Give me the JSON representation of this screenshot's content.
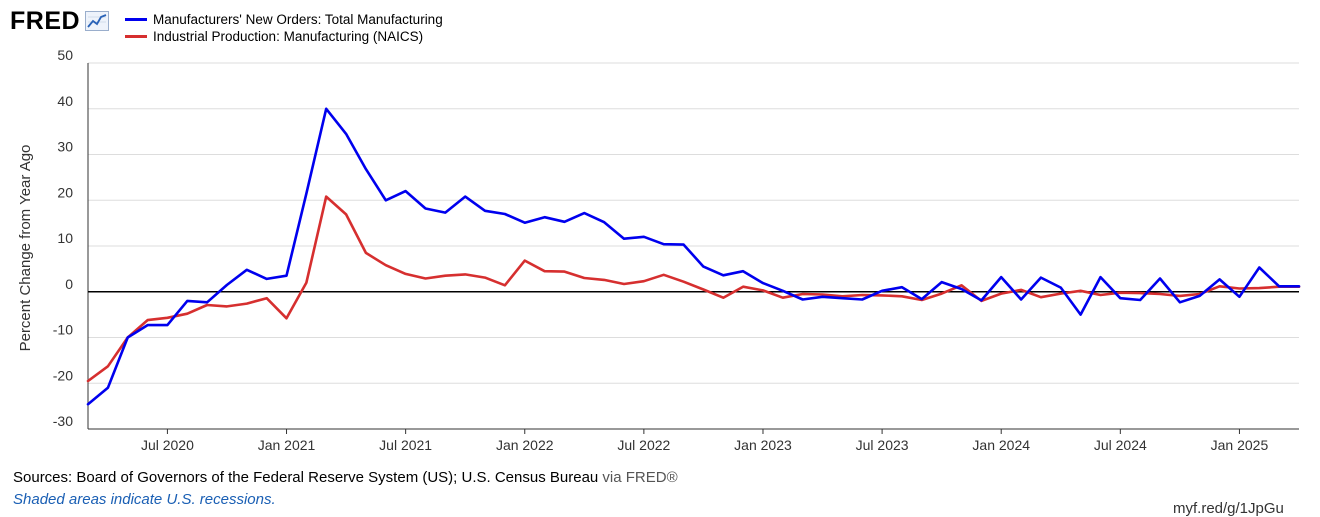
{
  "brand": {
    "logo_text": "FRED",
    "logo_icon": "line-graph-icon"
  },
  "colors": {
    "series_blue": "#0000ee",
    "series_red": "#d62f2f",
    "grid": "#dddddd",
    "zero_line": "#000000"
  },
  "footer": {
    "sources_label": "Sources: Board of Governors of the Federal Reserve System (US); U.S. Census Bureau",
    "via_label": "via FRED®",
    "recession_note": "Shaded areas indicate U.S. recessions.",
    "short_url": "myf.red/g/1JpGu"
  },
  "chart_data": {
    "type": "line",
    "title": "",
    "xlabel": "",
    "ylabel": "Percent Change from Year Ago",
    "ylim": [
      -30,
      50
    ],
    "yticks": [
      -30,
      -20,
      -10,
      0,
      10,
      20,
      30,
      40,
      50
    ],
    "ytick_labels": [
      "-30",
      "-20",
      "-10",
      "0",
      "10",
      "20",
      "30",
      "40",
      "50"
    ],
    "xlim": [
      "2020-03",
      "2025-04"
    ],
    "xtick_labels": [
      "Jul 2020",
      "Jan 2021",
      "Jul 2021",
      "Jan 2022",
      "Jul 2022",
      "Jan 2023",
      "Jul 2023",
      "Jan 2024",
      "Jul 2024",
      "Jan 2025"
    ],
    "xtick_dates": [
      "2020-07",
      "2021-01",
      "2021-07",
      "2022-01",
      "2022-07",
      "2023-01",
      "2023-07",
      "2024-01",
      "2024-07",
      "2025-01"
    ],
    "grid": true,
    "legend_position": "top-left",
    "x": [
      "2020-03",
      "2020-04",
      "2020-05",
      "2020-06",
      "2020-07",
      "2020-08",
      "2020-09",
      "2020-10",
      "2020-11",
      "2020-12",
      "2021-01",
      "2021-02",
      "2021-03",
      "2021-04",
      "2021-05",
      "2021-06",
      "2021-07",
      "2021-08",
      "2021-09",
      "2021-10",
      "2021-11",
      "2021-12",
      "2022-01",
      "2022-02",
      "2022-03",
      "2022-04",
      "2022-05",
      "2022-06",
      "2022-07",
      "2022-08",
      "2022-09",
      "2022-10",
      "2022-11",
      "2022-12",
      "2023-01",
      "2023-02",
      "2023-03",
      "2023-04",
      "2023-05",
      "2023-06",
      "2023-07",
      "2023-08",
      "2023-09",
      "2023-10",
      "2023-11",
      "2023-12",
      "2024-01",
      "2024-02",
      "2024-03",
      "2024-04",
      "2024-05",
      "2024-06",
      "2024-07",
      "2024-08",
      "2024-09",
      "2024-10",
      "2024-11",
      "2024-12",
      "2025-01",
      "2025-02",
      "2025-03",
      "2025-04"
    ],
    "series": [
      {
        "name": "Manufacturers' New Orders: Total Manufacturing",
        "color": "#0000ee",
        "values": [
          -24.6,
          -21,
          -10,
          -7.3,
          -7.3,
          -2,
          -2.3,
          1.5,
          4.8,
          2.8,
          3.5,
          21.5,
          40,
          34.5,
          26.8,
          20,
          22,
          18.2,
          17.3,
          20.8,
          17.7,
          17,
          15.1,
          16.3,
          15.3,
          17.2,
          15.2,
          11.6,
          12,
          10.4,
          10.3,
          5.5,
          3.6,
          4.5,
          1.9,
          0.2,
          -1.7,
          -1.1,
          -1.4,
          -1.7,
          0.2,
          1,
          -1.6,
          2.1,
          0.6,
          -1.9,
          3.2,
          -1.7,
          3.1,
          0.9,
          -5,
          3.2,
          -1.4,
          -1.8,
          2.9,
          -2.3,
          -0.9,
          2.7,
          -1.1,
          5.3,
          1.2,
          1.2
        ]
      },
      {
        "name": "Industrial Production: Manufacturing (NAICS)",
        "color": "#d62f2f",
        "values": [
          -19.5,
          -16.3,
          -10,
          -6.2,
          -5.7,
          -4.8,
          -2.9,
          -3.2,
          -2.6,
          -1.4,
          -5.8,
          2,
          20.8,
          16.9,
          8.5,
          5.8,
          3.9,
          2.9,
          3.5,
          3.8,
          3.1,
          1.4,
          6.8,
          4.5,
          4.4,
          3,
          2.6,
          1.7,
          2.3,
          3.7,
          2.2,
          0.5,
          -1.3,
          1.1,
          0.3,
          -1.3,
          -0.5,
          -0.6,
          -1,
          -0.7,
          -0.8,
          -1,
          -1.8,
          -0.4,
          1.4,
          -2,
          -0.4,
          0.4,
          -1.2,
          -0.4,
          0.2,
          -0.7,
          -0.2,
          -0.3,
          -0.5,
          -0.9,
          -0.5,
          1.2,
          0.7,
          0.8,
          1.1,
          1.1
        ]
      }
    ]
  }
}
